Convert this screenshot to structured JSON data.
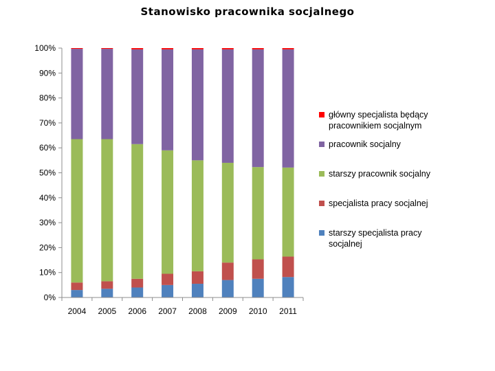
{
  "title": "Stanowisko pracownika socjalnego",
  "chart_data": {
    "type": "bar",
    "stacked": true,
    "percent": true,
    "categories": [
      "2004",
      "2005",
      "2006",
      "2007",
      "2008",
      "2009",
      "2010",
      "2011"
    ],
    "series": [
      {
        "name": "starszy specjalista pracy socjalnej",
        "color": "#4f81bd",
        "values": [
          3,
          3.5,
          4,
          5,
          5.5,
          7,
          7.5,
          8.2
        ]
      },
      {
        "name": "specjalista pracy socjalnej",
        "color": "#c0504d",
        "values": [
          3,
          3,
          3.5,
          4.5,
          5,
          7,
          7.8,
          8.2
        ]
      },
      {
        "name": "starszy pracownik socjalny",
        "color": "#9bbb59",
        "values": [
          57.5,
          57,
          54,
          49.5,
          44.5,
          40,
          37,
          35.7
        ]
      },
      {
        "name": "pracownik socjalny",
        "color": "#8064a2",
        "values": [
          36.2,
          36.2,
          38,
          40.5,
          44.5,
          45.5,
          47.2,
          47.4
        ]
      },
      {
        "name": "główny specjalista będący pracownikiem socjalnym",
        "color": "#ff0000",
        "values": [
          0.3,
          0.3,
          0.5,
          0.5,
          0.5,
          0.5,
          0.5,
          0.5
        ]
      }
    ],
    "legend_order": [
      4,
      3,
      2,
      1,
      0
    ],
    "ylim": [
      0,
      100
    ],
    "yticks": [
      "0%",
      "10%",
      "20%",
      "30%",
      "40%",
      "50%",
      "60%",
      "70%",
      "80%",
      "90%",
      "100%"
    ],
    "xlabel": "",
    "ylabel": "",
    "grid": false,
    "legend_position": "right"
  }
}
